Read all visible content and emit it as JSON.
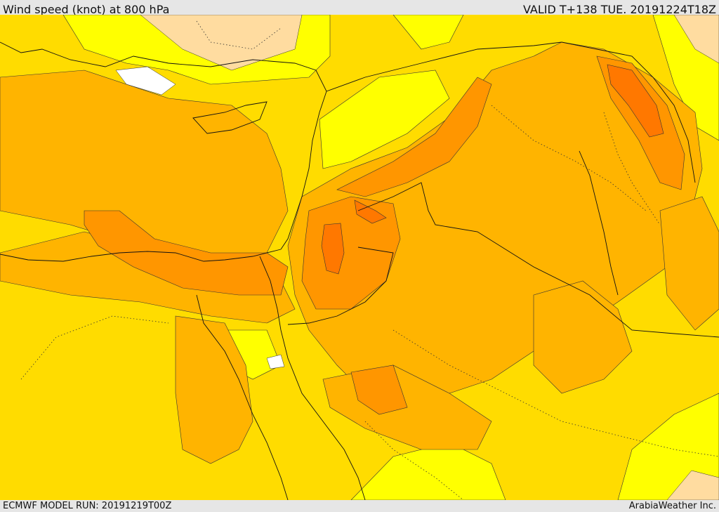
{
  "header": {
    "title": "Wind speed (knot) at 800 hPa",
    "valid_time": "VALID T+138 TUE. 20191224T18Z"
  },
  "footer": {
    "model_run": "ECMWF MODEL RUN: 20191219T00Z",
    "brand": "ArabiaWeather Inc."
  },
  "map": {
    "variable": "wind speed",
    "level": "800 hPa",
    "units": "knot",
    "shading_colors": [
      "#ffffff",
      "#ffff00",
      "#ffdc00",
      "#ffb400",
      "#ff9600",
      "#ff7800",
      "#ffdca0"
    ]
  }
}
